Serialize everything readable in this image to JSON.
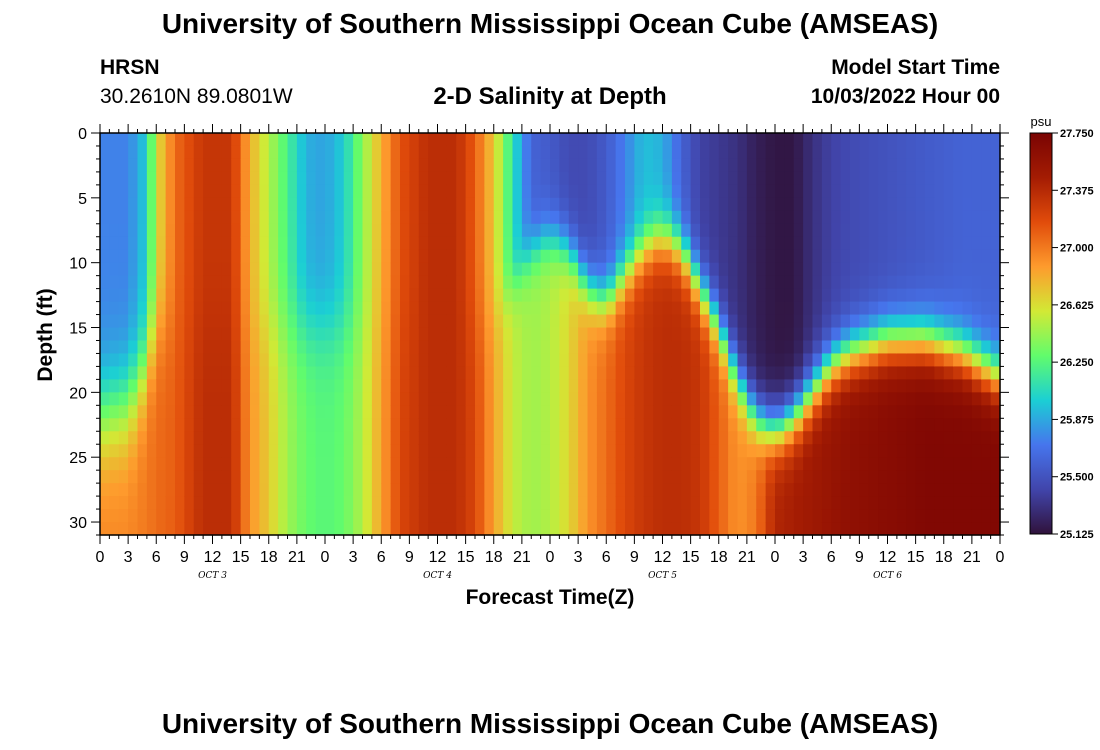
{
  "header": {
    "title": "University of Southern Mississippi Ocean Cube (AMSEAS)",
    "station": "HRSN",
    "coordinates": "30.2610N  89.0801W",
    "subtitle": "2-D Salinity at Depth",
    "model_start_label": "Model Start Time",
    "model_start_value": "10/03/2022 Hour 00"
  },
  "footer": {
    "title": "University of Southern Mississippi Ocean Cube (AMSEAS)"
  },
  "chart_data": {
    "type": "heatmap",
    "title": "2-D Salinity at Depth",
    "xlabel": "Forecast Time(Z)",
    "ylabel": "Depth (ft)",
    "x_tick_labels": [
      "0",
      "3",
      "6",
      "9",
      "12",
      "15",
      "18",
      "21",
      "0",
      "3",
      "6",
      "9",
      "12",
      "15",
      "18",
      "21",
      "0",
      "3",
      "6",
      "9",
      "12",
      "15",
      "18",
      "21",
      "0",
      "3",
      "6",
      "9",
      "12",
      "15",
      "18",
      "21",
      "0"
    ],
    "x_hours_range": [
      0,
      96
    ],
    "day_labels": [
      {
        "label": "OCT 3",
        "hour": 12
      },
      {
        "label": "OCT 4",
        "hour": 36
      },
      {
        "label": "OCT 5",
        "hour": 60
      },
      {
        "label": "OCT 6",
        "hour": 84
      }
    ],
    "y_ticks": [
      0,
      5,
      10,
      15,
      20,
      25,
      30
    ],
    "ylim": [
      0,
      31
    ],
    "y_inverted": true,
    "colorbar": {
      "unit": "psu",
      "min": 25.125,
      "max": 27.75,
      "tick_labels": [
        "27.750",
        "27.375",
        "27.000",
        "26.625",
        "26.250",
        "25.875",
        "25.500",
        "25.125"
      ],
      "colors": [
        "#30123b",
        "#4145ab",
        "#4675ed",
        "#1bcfd4",
        "#61fc6c",
        "#d2e935",
        "#fe9b2d",
        "#e14c0b",
        "#a41c03",
        "#7a0403"
      ]
    },
    "salinity_profiles": [
      {
        "hour": 0,
        "top": 25.75,
        "bottom": 26.95,
        "transition_depth": 22,
        "width": 6
      },
      {
        "hour": 3,
        "top": 25.75,
        "bottom": 26.95,
        "transition_depth": 21,
        "width": 6
      },
      {
        "hour": 5,
        "top": 26.0,
        "bottom": 27.0,
        "transition_depth": 18,
        "width": 5
      },
      {
        "hour": 6,
        "top": 26.6,
        "bottom": 27.05,
        "transition_depth": 15,
        "width": 5
      },
      {
        "hour": 8,
        "top": 27.05,
        "bottom": 27.1,
        "transition_depth": 15,
        "width": 5
      },
      {
        "hour": 11,
        "top": 27.3,
        "bottom": 27.35,
        "transition_depth": 15,
        "width": 5
      },
      {
        "hour": 14,
        "top": 27.3,
        "bottom": 27.35,
        "transition_depth": 15,
        "width": 5
      },
      {
        "hour": 16,
        "top": 26.8,
        "bottom": 26.9,
        "transition_depth": 15,
        "width": 5
      },
      {
        "hour": 18,
        "top": 26.5,
        "bottom": 26.7,
        "transition_depth": 15,
        "width": 5
      },
      {
        "hour": 20,
        "top": 26.2,
        "bottom": 26.45,
        "transition_depth": 15,
        "width": 5
      },
      {
        "hour": 22,
        "top": 25.9,
        "bottom": 26.3,
        "transition_depth": 15,
        "width": 5
      },
      {
        "hour": 24,
        "top": 25.85,
        "bottom": 26.25,
        "transition_depth": 15,
        "width": 5
      },
      {
        "hour": 26,
        "top": 26.0,
        "bottom": 26.3,
        "transition_depth": 15,
        "width": 5
      },
      {
        "hour": 28,
        "top": 26.4,
        "bottom": 26.5,
        "transition_depth": 15,
        "width": 5
      },
      {
        "hour": 30,
        "top": 26.8,
        "bottom": 26.85,
        "transition_depth": 15,
        "width": 5
      },
      {
        "hour": 32,
        "top": 27.15,
        "bottom": 27.2,
        "transition_depth": 15,
        "width": 5
      },
      {
        "hour": 35,
        "top": 27.35,
        "bottom": 27.35,
        "transition_depth": 15,
        "width": 5
      },
      {
        "hour": 38,
        "top": 27.35,
        "bottom": 27.35,
        "transition_depth": 15,
        "width": 5
      },
      {
        "hour": 40,
        "top": 27.1,
        "bottom": 27.2,
        "transition_depth": 15,
        "width": 5
      },
      {
        "hour": 42,
        "top": 26.7,
        "bottom": 26.85,
        "transition_depth": 14,
        "width": 4
      },
      {
        "hour": 44,
        "top": 26.1,
        "bottom": 26.55,
        "transition_depth": 12,
        "width": 3
      },
      {
        "hour": 46,
        "top": 25.6,
        "bottom": 26.45,
        "transition_depth": 9,
        "width": 3
      },
      {
        "hour": 48,
        "top": 25.55,
        "bottom": 26.5,
        "transition_depth": 8,
        "width": 3
      },
      {
        "hour": 50,
        "top": 25.45,
        "bottom": 26.65,
        "transition_depth": 9,
        "width": 3
      },
      {
        "hour": 52,
        "top": 25.45,
        "bottom": 26.9,
        "transition_depth": 12,
        "width": 3
      },
      {
        "hour": 54,
        "top": 25.55,
        "bottom": 27.05,
        "transition_depth": 13,
        "width": 3
      },
      {
        "hour": 56,
        "top": 25.75,
        "bottom": 27.2,
        "transition_depth": 11,
        "width": 3
      },
      {
        "hour": 58,
        "top": 25.95,
        "bottom": 27.3,
        "transition_depth": 9,
        "width": 3
      },
      {
        "hour": 60,
        "top": 25.9,
        "bottom": 27.35,
        "transition_depth": 8,
        "width": 3
      },
      {
        "hour": 62,
        "top": 25.6,
        "bottom": 27.35,
        "transition_depth": 9,
        "width": 3
      },
      {
        "hour": 64,
        "top": 25.4,
        "bottom": 27.3,
        "transition_depth": 12,
        "width": 3
      },
      {
        "hour": 66,
        "top": 25.35,
        "bottom": 27.1,
        "transition_depth": 15,
        "width": 3
      },
      {
        "hour": 68,
        "top": 25.3,
        "bottom": 26.9,
        "transition_depth": 19,
        "width": 3
      },
      {
        "hour": 70,
        "top": 25.2,
        "bottom": 27.0,
        "transition_depth": 22,
        "width": 3
      },
      {
        "hour": 72,
        "top": 25.15,
        "bottom": 27.4,
        "transition_depth": 23,
        "width": 3
      },
      {
        "hour": 74,
        "top": 25.15,
        "bottom": 27.45,
        "transition_depth": 22,
        "width": 3
      },
      {
        "hour": 76,
        "top": 25.3,
        "bottom": 27.5,
        "transition_depth": 20,
        "width": 3
      },
      {
        "hour": 78,
        "top": 25.4,
        "bottom": 27.55,
        "transition_depth": 18,
        "width": 3
      },
      {
        "hour": 80,
        "top": 25.45,
        "bottom": 27.6,
        "transition_depth": 17,
        "width": 3
      },
      {
        "hour": 84,
        "top": 25.5,
        "bottom": 27.65,
        "transition_depth": 16,
        "width": 3
      },
      {
        "hour": 88,
        "top": 25.55,
        "bottom": 27.7,
        "transition_depth": 16,
        "width": 3
      },
      {
        "hour": 92,
        "top": 25.6,
        "bottom": 27.7,
        "transition_depth": 17,
        "width": 3
      },
      {
        "hour": 96,
        "top": 25.6,
        "bottom": 27.7,
        "transition_depth": 19,
        "width": 3
      }
    ]
  }
}
